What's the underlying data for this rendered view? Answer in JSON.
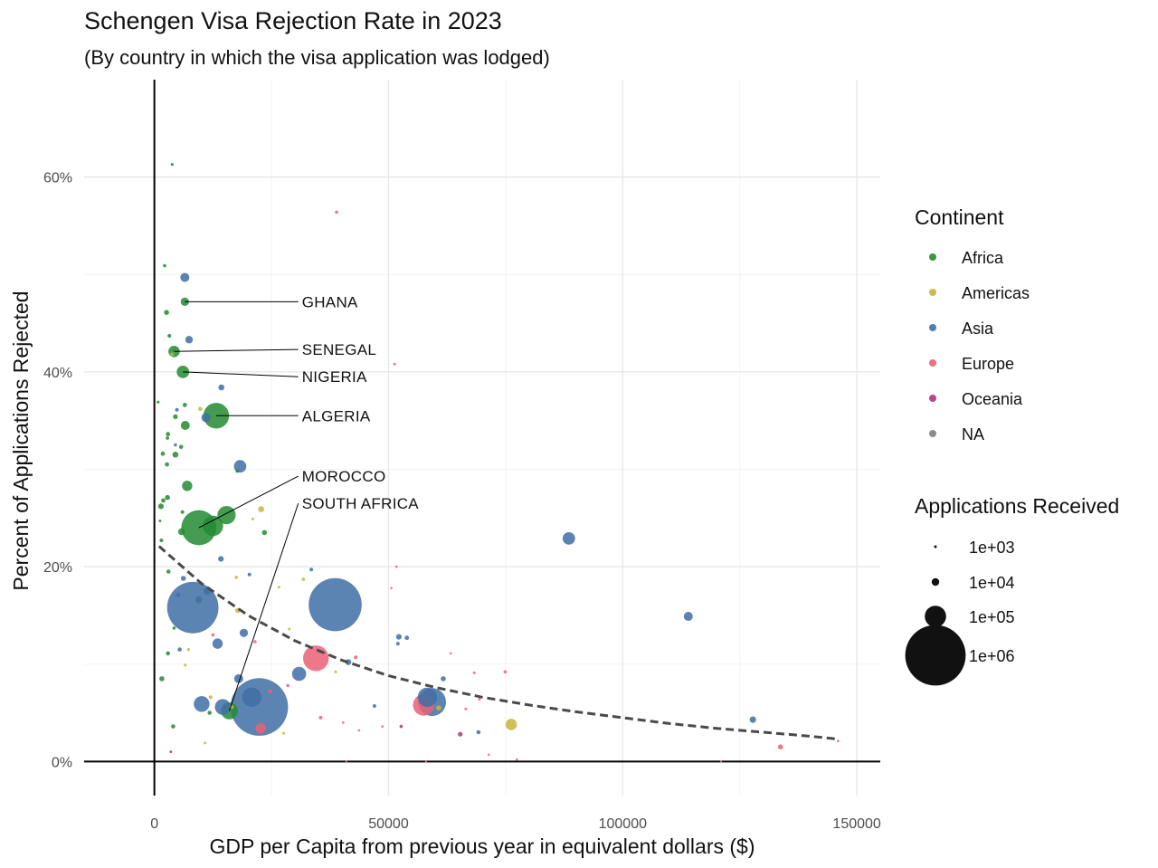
{
  "chart_data": {
    "type": "scatter",
    "title": "Schengen Visa Rejection Rate in 2023",
    "subtitle": "(By country in which the visa application was lodged)",
    "xlabel": "GDP per Capita from previous year in equivalent dollars ($)",
    "ylabel": "Percent of Applications Rejected",
    "xlim": [
      -15000,
      155000
    ],
    "ylim": [
      -0.035,
      0.7
    ],
    "x_ticks": [
      {
        "value": 0,
        "label": "0"
      },
      {
        "value": 50000,
        "label": "50000"
      },
      {
        "value": 100000,
        "label": "100000"
      },
      {
        "value": 150000,
        "label": "150000"
      }
    ],
    "y_ticks": [
      {
        "value": 0,
        "label": "0%"
      },
      {
        "value": 0.2,
        "label": "20%"
      },
      {
        "value": 0.4,
        "label": "40%"
      },
      {
        "value": 0.6,
        "label": "60%"
      }
    ],
    "grid": true,
    "legend_position": "right",
    "continent_legend": {
      "title": "Continent",
      "entries": [
        {
          "name": "Africa",
          "color": "#238b32"
        },
        {
          "name": "Americas",
          "color": "#c7b53c"
        },
        {
          "name": "Asia",
          "color": "#3f6fa6"
        },
        {
          "name": "Europe",
          "color": "#eb5f74"
        },
        {
          "name": "Oceania",
          "color": "#b0347a"
        },
        {
          "name": "NA",
          "color": "#7f7f7f"
        }
      ]
    },
    "size_legend": {
      "title": "Applications Received",
      "entries": [
        {
          "label": "1e+03",
          "value": 1000
        },
        {
          "label": "1e+04",
          "value": 10000
        },
        {
          "label": "1e+05",
          "value": 100000
        },
        {
          "label": "1e+06",
          "value": 1000000
        }
      ]
    },
    "trend_line": [
      {
        "x": 1000,
        "y": 0.221
      },
      {
        "x": 10000,
        "y": 0.183
      },
      {
        "x": 20000,
        "y": 0.15
      },
      {
        "x": 30000,
        "y": 0.124
      },
      {
        "x": 40000,
        "y": 0.104
      },
      {
        "x": 50000,
        "y": 0.088
      },
      {
        "x": 60000,
        "y": 0.076
      },
      {
        "x": 70000,
        "y": 0.066
      },
      {
        "x": 80000,
        "y": 0.058
      },
      {
        "x": 90000,
        "y": 0.051
      },
      {
        "x": 100000,
        "y": 0.045
      },
      {
        "x": 110000,
        "y": 0.039
      },
      {
        "x": 120000,
        "y": 0.034
      },
      {
        "x": 130000,
        "y": 0.03
      },
      {
        "x": 140000,
        "y": 0.026
      },
      {
        "x": 146000,
        "y": 0.023
      }
    ],
    "annotations": [
      {
        "label": "GHANA",
        "x": 6500,
        "y": 0.472,
        "label_x": 31500,
        "label_y": 0.472
      },
      {
        "label": "SENEGAL",
        "x": 4200,
        "y": 0.421,
        "label_x": 31500,
        "label_y": 0.423
      },
      {
        "label": "NIGERIA",
        "x": 6100,
        "y": 0.4,
        "label_x": 31500,
        "label_y": 0.395
      },
      {
        "label": "ALGERIA",
        "x": 13200,
        "y": 0.355,
        "label_x": 31500,
        "label_y": 0.355
      },
      {
        "label": "MOROCCO",
        "x": 9500,
        "y": 0.24,
        "label_x": 31500,
        "label_y": 0.293
      },
      {
        "label": "SOUTH AFRICA",
        "x": 16000,
        "y": 0.052,
        "label_x": 31500,
        "label_y": 0.265
      }
    ],
    "points": [
      {
        "x": 3800,
        "y": 0.613,
        "continent": "Africa",
        "applications": 1200
      },
      {
        "x": 2200,
        "y": 0.509,
        "continent": "Africa",
        "applications": 1500
      },
      {
        "x": 6500,
        "y": 0.472,
        "continent": "Africa",
        "applications": 12000
      },
      {
        "x": 2600,
        "y": 0.461,
        "continent": "Africa",
        "applications": 4000
      },
      {
        "x": 3200,
        "y": 0.437,
        "continent": "Africa",
        "applications": 2200
      },
      {
        "x": 4200,
        "y": 0.421,
        "continent": "Africa",
        "applications": 25000
      },
      {
        "x": 6100,
        "y": 0.4,
        "continent": "Africa",
        "applications": 30000
      },
      {
        "x": 800,
        "y": 0.369,
        "continent": "Africa",
        "applications": 1200
      },
      {
        "x": 6500,
        "y": 0.366,
        "continent": "Africa",
        "applications": 3000
      },
      {
        "x": 13200,
        "y": 0.355,
        "continent": "Africa",
        "applications": 150000
      },
      {
        "x": 4500,
        "y": 0.354,
        "continent": "Africa",
        "applications": 3500
      },
      {
        "x": 6600,
        "y": 0.345,
        "continent": "Africa",
        "applications": 15000
      },
      {
        "x": 2900,
        "y": 0.336,
        "continent": "Africa",
        "applications": 3000
      },
      {
        "x": 2800,
        "y": 0.332,
        "continent": "Africa",
        "applications": 1800
      },
      {
        "x": 5700,
        "y": 0.323,
        "continent": "Africa",
        "applications": 2500
      },
      {
        "x": 1800,
        "y": 0.316,
        "continent": "Africa",
        "applications": 3000
      },
      {
        "x": 4500,
        "y": 0.315,
        "continent": "Africa",
        "applications": 6000
      },
      {
        "x": 2700,
        "y": 0.305,
        "continent": "Africa",
        "applications": 3000
      },
      {
        "x": 17700,
        "y": 0.298,
        "continent": "Africa",
        "applications": 1500
      },
      {
        "x": 7000,
        "y": 0.283,
        "continent": "Africa",
        "applications": 20000
      },
      {
        "x": 2800,
        "y": 0.271,
        "continent": "Africa",
        "applications": 4000
      },
      {
        "x": 1900,
        "y": 0.268,
        "continent": "Africa",
        "applications": 3000
      },
      {
        "x": 1400,
        "y": 0.262,
        "continent": "Africa",
        "applications": 5000
      },
      {
        "x": 6000,
        "y": 0.256,
        "continent": "Africa",
        "applications": 2000
      },
      {
        "x": 15400,
        "y": 0.253,
        "continent": "Africa",
        "applications": 70000
      },
      {
        "x": 9500,
        "y": 0.24,
        "continent": "Africa",
        "applications": 300000
      },
      {
        "x": 12500,
        "y": 0.242,
        "continent": "Africa",
        "applications": 90000
      },
      {
        "x": 1200,
        "y": 0.247,
        "continent": "Africa",
        "applications": 1000
      },
      {
        "x": 5800,
        "y": 0.236,
        "continent": "Africa",
        "applications": 8000
      },
      {
        "x": 23500,
        "y": 0.235,
        "continent": "Africa",
        "applications": 4000
      },
      {
        "x": 1500,
        "y": 0.227,
        "continent": "Africa",
        "applications": 2000
      },
      {
        "x": 3000,
        "y": 0.195,
        "continent": "Africa",
        "applications": 2500
      },
      {
        "x": 4200,
        "y": 0.137,
        "continent": "Africa",
        "applications": 1500
      },
      {
        "x": 2900,
        "y": 0.111,
        "continent": "Africa",
        "applications": 2500
      },
      {
        "x": 1600,
        "y": 0.085,
        "continent": "Africa",
        "applications": 4000
      },
      {
        "x": 16000,
        "y": 0.052,
        "continent": "Africa",
        "applications": 60000
      },
      {
        "x": 11800,
        "y": 0.05,
        "continent": "Africa",
        "applications": 2500
      },
      {
        "x": 4000,
        "y": 0.036,
        "continent": "Africa",
        "applications": 2500
      },
      {
        "x": 6500,
        "y": 0.497,
        "continent": "Asia",
        "applications": 15000
      },
      {
        "x": 7400,
        "y": 0.433,
        "continent": "Asia",
        "applications": 10000
      },
      {
        "x": 14300,
        "y": 0.384,
        "continent": "Asia",
        "applications": 6000
      },
      {
        "x": 4800,
        "y": 0.361,
        "continent": "Asia",
        "applications": 2000
      },
      {
        "x": 11000,
        "y": 0.353,
        "continent": "Asia",
        "applications": 15000
      },
      {
        "x": 4500,
        "y": 0.325,
        "continent": "Asia",
        "applications": 1500
      },
      {
        "x": 18300,
        "y": 0.303,
        "continent": "Asia",
        "applications": 30000
      },
      {
        "x": 14200,
        "y": 0.208,
        "continent": "Asia",
        "applications": 5000
      },
      {
        "x": 20300,
        "y": 0.192,
        "continent": "Asia",
        "applications": 2000
      },
      {
        "x": 33500,
        "y": 0.197,
        "continent": "Asia",
        "applications": 2000
      },
      {
        "x": 6200,
        "y": 0.188,
        "continent": "Asia",
        "applications": 4000
      },
      {
        "x": 11300,
        "y": 0.175,
        "continent": "Asia",
        "applications": 10000
      },
      {
        "x": 5100,
        "y": 0.171,
        "continent": "Asia",
        "applications": 2500
      },
      {
        "x": 9500,
        "y": 0.166,
        "continent": "Asia",
        "applications": 8000
      },
      {
        "x": 8200,
        "y": 0.158,
        "continent": "Asia",
        "applications": 700000
      },
      {
        "x": 38600,
        "y": 0.161,
        "continent": "Asia",
        "applications": 750000
      },
      {
        "x": 19100,
        "y": 0.132,
        "continent": "Asia",
        "applications": 12000
      },
      {
        "x": 52200,
        "y": 0.128,
        "continent": "Asia",
        "applications": 5000
      },
      {
        "x": 53900,
        "y": 0.127,
        "continent": "Asia",
        "applications": 3000
      },
      {
        "x": 52000,
        "y": 0.121,
        "continent": "Asia",
        "applications": 2000
      },
      {
        "x": 13500,
        "y": 0.121,
        "continent": "Asia",
        "applications": 20000
      },
      {
        "x": 5400,
        "y": 0.115,
        "continent": "Asia",
        "applications": 2500
      },
      {
        "x": 41400,
        "y": 0.102,
        "continent": "Asia",
        "applications": 6000
      },
      {
        "x": 30900,
        "y": 0.09,
        "continent": "Asia",
        "applications": 40000
      },
      {
        "x": 61700,
        "y": 0.085,
        "continent": "Asia",
        "applications": 4000
      },
      {
        "x": 18000,
        "y": 0.085,
        "continent": "Asia",
        "applications": 15000
      },
      {
        "x": 20800,
        "y": 0.066,
        "continent": "Asia",
        "applications": 80000
      },
      {
        "x": 58300,
        "y": 0.066,
        "continent": "Asia",
        "applications": 80000
      },
      {
        "x": 59300,
        "y": 0.061,
        "continent": "Asia",
        "applications": 180000
      },
      {
        "x": 10100,
        "y": 0.059,
        "continent": "Asia",
        "applications": 50000
      },
      {
        "x": 14600,
        "y": 0.056,
        "continent": "Asia",
        "applications": 50000
      },
      {
        "x": 22400,
        "y": 0.056,
        "continent": "Asia",
        "applications": 900000
      },
      {
        "x": 47000,
        "y": 0.057,
        "continent": "Asia",
        "applications": 2000
      },
      {
        "x": 69200,
        "y": 0.03,
        "continent": "Asia",
        "applications": 2500
      },
      {
        "x": 88500,
        "y": 0.229,
        "continent": "Asia",
        "applications": 30000
      },
      {
        "x": 114000,
        "y": 0.149,
        "continent": "Asia",
        "applications": 15000
      },
      {
        "x": 127800,
        "y": 0.043,
        "continent": "Asia",
        "applications": 7000
      },
      {
        "x": 9800,
        "y": 0.362,
        "continent": "Americas",
        "applications": 2500
      },
      {
        "x": 3800,
        "y": 0.418,
        "continent": "Americas",
        "applications": 2000
      },
      {
        "x": 22800,
        "y": 0.259,
        "continent": "Americas",
        "applications": 6000
      },
      {
        "x": 21000,
        "y": 0.249,
        "continent": "Americas",
        "applications": 1000
      },
      {
        "x": 17500,
        "y": 0.189,
        "continent": "Americas",
        "applications": 1500
      },
      {
        "x": 31800,
        "y": 0.187,
        "continent": "Americas",
        "applications": 1500
      },
      {
        "x": 26600,
        "y": 0.179,
        "continent": "Americas",
        "applications": 1000
      },
      {
        "x": 17800,
        "y": 0.155,
        "continent": "Americas",
        "applications": 4000
      },
      {
        "x": 28800,
        "y": 0.136,
        "continent": "Americas",
        "applications": 1000
      },
      {
        "x": 7300,
        "y": 0.115,
        "continent": "Americas",
        "applications": 1200
      },
      {
        "x": 6600,
        "y": 0.099,
        "continent": "Americas",
        "applications": 1200
      },
      {
        "x": 38700,
        "y": 0.092,
        "continent": "Americas",
        "applications": 1200
      },
      {
        "x": 12000,
        "y": 0.066,
        "continent": "Americas",
        "applications": 2000
      },
      {
        "x": 16500,
        "y": 0.056,
        "continent": "Americas",
        "applications": 2500
      },
      {
        "x": 60700,
        "y": 0.055,
        "continent": "Americas",
        "applications": 4000
      },
      {
        "x": 76200,
        "y": 0.038,
        "continent": "Americas",
        "applications": 25000
      },
      {
        "x": 27600,
        "y": 0.029,
        "continent": "Americas",
        "applications": 1000
      },
      {
        "x": 10800,
        "y": 0.019,
        "continent": "Americas",
        "applications": 1000
      },
      {
        "x": 38900,
        "y": 0.564,
        "continent": "Europe",
        "applications": 1500
      },
      {
        "x": 51300,
        "y": 0.408,
        "continent": "Europe",
        "applications": 1000
      },
      {
        "x": 51700,
        "y": 0.2,
        "continent": "Europe",
        "applications": 700
      },
      {
        "x": 50600,
        "y": 0.178,
        "continent": "Europe",
        "applications": 800
      },
      {
        "x": 21500,
        "y": 0.123,
        "continent": "Europe",
        "applications": 1500
      },
      {
        "x": 12500,
        "y": 0.13,
        "continent": "Europe",
        "applications": 1500
      },
      {
        "x": 63300,
        "y": 0.111,
        "continent": "Europe",
        "applications": 700
      },
      {
        "x": 34500,
        "y": 0.106,
        "continent": "Europe",
        "applications": 150000
      },
      {
        "x": 43000,
        "y": 0.107,
        "continent": "Europe",
        "applications": 2000
      },
      {
        "x": 74900,
        "y": 0.092,
        "continent": "Europe",
        "applications": 1500
      },
      {
        "x": 68300,
        "y": 0.091,
        "continent": "Europe",
        "applications": 1000
      },
      {
        "x": 28500,
        "y": 0.078,
        "continent": "Europe",
        "applications": 1500
      },
      {
        "x": 24700,
        "y": 0.072,
        "continent": "Europe",
        "applications": 2500
      },
      {
        "x": 69400,
        "y": 0.064,
        "continent": "Europe",
        "applications": 1000
      },
      {
        "x": 57500,
        "y": 0.058,
        "continent": "Europe",
        "applications": 100000
      },
      {
        "x": 66500,
        "y": 0.054,
        "continent": "Europe",
        "applications": 1000
      },
      {
        "x": 35500,
        "y": 0.045,
        "continent": "Europe",
        "applications": 2000
      },
      {
        "x": 40300,
        "y": 0.04,
        "continent": "Europe",
        "applications": 700
      },
      {
        "x": 22700,
        "y": 0.034,
        "continent": "Europe",
        "applications": 20000
      },
      {
        "x": 43700,
        "y": 0.032,
        "continent": "Europe",
        "applications": 700
      },
      {
        "x": 48700,
        "y": 0.036,
        "continent": "Europe",
        "applications": 800
      },
      {
        "x": 71400,
        "y": 0.007,
        "continent": "Europe",
        "applications": 800
      },
      {
        "x": 77400,
        "y": 0.002,
        "continent": "Europe",
        "applications": 800
      },
      {
        "x": 146000,
        "y": 0.021,
        "continent": "Europe",
        "applications": 700
      },
      {
        "x": 133700,
        "y": 0.015,
        "continent": "Europe",
        "applications": 4000
      },
      {
        "x": 41000,
        "y": 0.0,
        "continent": "Europe",
        "applications": 600
      },
      {
        "x": 58000,
        "y": 0.0,
        "continent": "Europe",
        "applications": 600
      },
      {
        "x": 121000,
        "y": 0.0,
        "continent": "Europe",
        "applications": 600
      },
      {
        "x": 65300,
        "y": 0.028,
        "continent": "Oceania",
        "applications": 3500
      },
      {
        "x": 52700,
        "y": 0.036,
        "continent": "Oceania",
        "applications": 1500
      },
      {
        "x": 3500,
        "y": 0.01,
        "continent": "Oceania",
        "applications": 1000
      }
    ]
  }
}
